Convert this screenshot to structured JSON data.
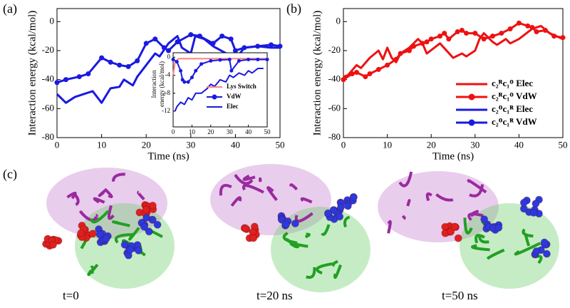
{
  "chart_data": [
    {
      "type": "line",
      "panel_label": "(a)",
      "xlabel": "Time (ns)",
      "ylabel": "Interaction energy (kcal/mol)",
      "xlim": [
        0,
        50
      ],
      "xticks": [
        0,
        10,
        20,
        30,
        40,
        50
      ],
      "ylim": [
        -80,
        9
      ],
      "yticks": [
        -80,
        -60,
        -40,
        -20,
        0
      ],
      "series": [
        {
          "name": "c₂ᴼc₁ᴿ Elec",
          "color": "#1a1ae0",
          "x": [
            0,
            2,
            4,
            6,
            8,
            10,
            12,
            14,
            15,
            17,
            18,
            20,
            22,
            23,
            25,
            27,
            28,
            30,
            31,
            33,
            35,
            38,
            40,
            42,
            45,
            48,
            50
          ],
          "values": [
            -50,
            -56,
            -52,
            -50,
            -48,
            -56,
            -46,
            -45,
            -40,
            -44,
            -38,
            -30,
            -22,
            -24,
            -15,
            -10,
            -18,
            -22,
            -10,
            -12,
            -17,
            -22,
            -26,
            -18,
            -17,
            -18,
            -18
          ]
        },
        {
          "name": "c₂ᴼc₁ᴿ VdW",
          "color": "#1a1ae0",
          "marker": "circle",
          "x": [
            0,
            2,
            5,
            7,
            10,
            12,
            14,
            16,
            18,
            20,
            22,
            24,
            25,
            27,
            30,
            32,
            35,
            37,
            39,
            40,
            42,
            45,
            48,
            50
          ],
          "values": [
            -42,
            -40,
            -38,
            -36,
            -25,
            -28,
            -30,
            -31,
            -27,
            -15,
            -12,
            -18,
            -20,
            -14,
            -9,
            -10,
            -15,
            -10,
            -12,
            -20,
            -18,
            -17,
            -16,
            -17
          ]
        }
      ]
    },
    {
      "type": "line",
      "panel_label": "(b)",
      "xlabel": "Time (ns)",
      "ylabel": "Interaction energy (kcal/mol)",
      "xlim": [
        0,
        50
      ],
      "xticks": [
        0,
        10,
        20,
        30,
        40,
        50
      ],
      "ylim": [
        -80,
        9
      ],
      "yticks": [
        -80,
        -60,
        -40,
        -20,
        0
      ],
      "legend": "lower right",
      "series": [
        {
          "name": "c₂ᴿc₁ᴼ Elec",
          "color": "#ee1111",
          "x": [
            0,
            1,
            3,
            4,
            6,
            8,
            9,
            10,
            11,
            12,
            13,
            15,
            17,
            18,
            19,
            22,
            25,
            27,
            28,
            30,
            31,
            32,
            34,
            35,
            37,
            38,
            40,
            43,
            45,
            47,
            50
          ],
          "values": [
            -38,
            -37,
            -30,
            -32,
            -25,
            -20,
            -26,
            -18,
            -25,
            -28,
            -22,
            -18,
            -12,
            -15,
            -22,
            -15,
            -25,
            -22,
            -24,
            -20,
            -12,
            -8,
            -14,
            -16,
            -12,
            -15,
            -12,
            -5,
            -3,
            -8,
            -12
          ]
        },
        {
          "name": "c₂ᴿc₁ᴼ VdW",
          "color": "#ee1111",
          "marker": "circle",
          "x": [
            0,
            2,
            3,
            5,
            6,
            8,
            10,
            12,
            13,
            15,
            16,
            18,
            19,
            20,
            22,
            23,
            24,
            26,
            27,
            28,
            30,
            32,
            34,
            36,
            38,
            40,
            42,
            43,
            44,
            46,
            48,
            50
          ],
          "values": [
            -40,
            -36,
            -35,
            -38,
            -36,
            -33,
            -30,
            -26,
            -22,
            -20,
            -17,
            -15,
            -14,
            -12,
            -10,
            -8,
            -12,
            -7,
            -6,
            -8,
            -8,
            -12,
            -10,
            -8,
            -5,
            -1,
            -3,
            -4,
            -7,
            -6,
            -10,
            -11
          ]
        }
      ]
    },
    {
      "type": "line",
      "ylabel": [
        "Interaction",
        "energy (kcal/mol)"
      ],
      "xlim": [
        0,
        50
      ],
      "xticks": [
        0,
        10,
        20,
        30,
        40,
        50
      ],
      "ylim": [
        -15.5,
        1
      ],
      "yticks": [
        -12,
        -8,
        -4,
        0
      ],
      "legend": "lower right",
      "series": [
        {
          "name": "Lys Switch",
          "color": "#ff8080",
          "x": [
            0,
            1,
            3,
            50
          ],
          "values": [
            -4,
            -1,
            -0.3,
            -0.3
          ]
        },
        {
          "name": "VdW",
          "color": "#1a1ae0",
          "marker": "circle",
          "x": [
            0,
            2,
            4,
            5,
            6,
            8,
            10,
            12,
            15,
            20,
            25,
            30,
            31,
            35,
            40,
            45,
            50
          ],
          "values": [
            -0.5,
            -1,
            -3,
            -5,
            -5.5,
            -5.5,
            -4.5,
            -3,
            -1.5,
            -0.8,
            -0.6,
            -0.5,
            -3,
            -0.8,
            -0.5,
            -0.5,
            -0.5
          ]
        },
        {
          "name": "Elec",
          "color": "#1a1ae0",
          "x": [
            1,
            2,
            4,
            6,
            8,
            10,
            12,
            15,
            18,
            20,
            22,
            25,
            28,
            30,
            32,
            35,
            38,
            40,
            42,
            45,
            48
          ],
          "values": [
            -12,
            -11,
            -10,
            -10.5,
            -9,
            -9.5,
            -8,
            -8,
            -7,
            -6,
            -6.5,
            -5,
            -5.5,
            -4,
            -4.5,
            -3.5,
            -4,
            -3,
            -3.5,
            -2.5,
            -2.5
          ]
        }
      ]
    }
  ],
  "panel_c": {
    "label": "(c)",
    "captions": [
      "t=0",
      "t=20 ns",
      "t=50 ns"
    ]
  }
}
